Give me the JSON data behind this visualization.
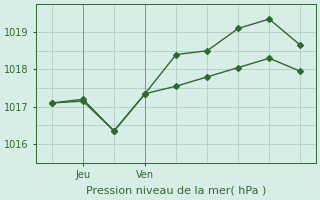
{
  "line1_x": [
    0,
    1,
    2,
    3,
    4,
    5,
    6,
    7,
    8
  ],
  "line1_y": [
    1017.1,
    1017.15,
    1016.35,
    1017.35,
    1018.4,
    1018.5,
    1019.1,
    1019.35,
    1018.65
  ],
  "line2_x": [
    0,
    1,
    2,
    3,
    4,
    5,
    6,
    7,
    8
  ],
  "line2_y": [
    1017.1,
    1017.2,
    1016.35,
    1017.35,
    1017.55,
    1017.8,
    1018.05,
    1018.3,
    1017.95
  ],
  "jeu_x": 1,
  "ven_x": 3,
  "xtick_positions": [
    1,
    3
  ],
  "xtick_labels": [
    "Jeu",
    "Ven"
  ],
  "ytick_positions": [
    1016,
    1017,
    1018,
    1019
  ],
  "ytick_labels": [
    "1016",
    "1017",
    "1018",
    "1019"
  ],
  "ylim": [
    1015.65,
    1019.75
  ],
  "xlim": [
    -0.5,
    8.5
  ],
  "xlabel": "Pression niveau de la mer( hPa )",
  "line_color": "#2d6a2d",
  "bg_color": "#d8ede8",
  "plot_bg_color": "#d8ede8",
  "grid_color": "#b0cfc4",
  "marker": "D",
  "markersize": 3,
  "linewidth": 1.0,
  "fontsize_tick": 7,
  "fontsize_xlabel": 8
}
